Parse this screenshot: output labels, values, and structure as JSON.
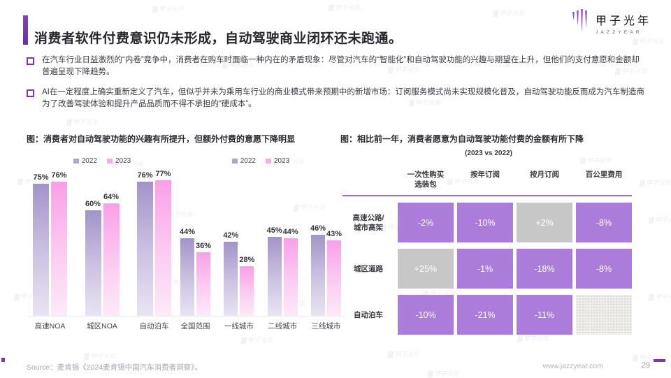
{
  "header": {
    "title": "消费者软件付费意识仍未形成，自动驾驶商业闭环还未跑通。"
  },
  "logo": {
    "name": "甲子光年",
    "sub": "JAZZYEAR"
  },
  "watermark": "甲子光年",
  "bullets": [
    "在汽车行业日益激烈的“内卷”竞争中，消费者在购车时面临一种内在的矛盾现象：尽管对汽车的“智能化”和自动驾驶功能的兴趣与期望在上升，但他们的支付意愿和金额却普遍呈现下降趋势。",
    "AI在一定程度上确实重新定义了汽车，但似乎并未为乘用车行业的商业模式带来预期中的新增市场：订阅服务模式尚未实现规模化普及，自动驾驶功能反而成为汽车制造商为了改善驾驶体验和提升产品品质而不得不承担的“硬成本”。"
  ],
  "figures": {
    "left": {
      "title": "图：消费者对自动驾驶功能的兴趣有所提升，但额外付费的意愿下降明显"
    },
    "right": {
      "title": "图：相比前一年，消费者愿意为自动驾驶功能付费的金额有所下降",
      "subtitle": "(2023 vs 2022)"
    }
  },
  "chart_data": [
    {
      "type": "bar",
      "title": "消费者对自动驾驶功能的兴趣",
      "categories": [
        "高速NOA",
        "城区NOA",
        "自动泊车"
      ],
      "series": [
        {
          "name": "2022",
          "values": [
            75,
            60,
            76
          ]
        },
        {
          "name": "2023",
          "values": [
            76,
            64,
            77
          ]
        }
      ],
      "unit": "%",
      "ylim": [
        0,
        100
      ],
      "legend_position": "top",
      "grid": false
    },
    {
      "type": "bar",
      "title": "额外付费的意愿",
      "categories": [
        "全国范围",
        "一线城市",
        "二线城市",
        "三线城市"
      ],
      "series": [
        {
          "name": "2022",
          "values": [
            44,
            42,
            45,
            46
          ]
        },
        {
          "name": "2023",
          "values": [
            36,
            28,
            44,
            43
          ]
        }
      ],
      "unit": "%",
      "ylim": [
        0,
        100
      ],
      "legend_position": "top",
      "grid": false
    },
    {
      "type": "table",
      "title": "相比前一年，消费者愿意为自动驾驶功能付费的金额有所下降 (2023 vs 2022)",
      "columns": [
        "一次性购买\n选装包",
        "按年订阅",
        "按月订阅",
        "百公里费用"
      ],
      "rows": [
        {
          "label": "高速公路/\n城市高架",
          "cells": [
            {
              "value": "-2%",
              "style": "purple"
            },
            {
              "value": "-10%",
              "style": "purple"
            },
            {
              "value": "+2%",
              "style": "gray"
            },
            {
              "value": "-8%",
              "style": "purple"
            }
          ]
        },
        {
          "label": "城区道路",
          "cells": [
            {
              "value": "+25%",
              "style": "gray"
            },
            {
              "value": "-1%",
              "style": "purple"
            },
            {
              "value": "-18%",
              "style": "purple"
            },
            {
              "value": "-8%",
              "style": "purple"
            }
          ]
        },
        {
          "label": "自动泊车",
          "cells": [
            {
              "value": "-10%",
              "style": "purple"
            },
            {
              "value": "-21%",
              "style": "purple"
            },
            {
              "value": "-11%",
              "style": "purple"
            },
            {
              "value": "",
              "style": "empty"
            }
          ]
        }
      ]
    }
  ],
  "colors": {
    "accent_purple": "#7d35b5",
    "bar_2022": "#a294c9",
    "bar_2023": "#fa9fe9",
    "table_purple": "#ab7cd9",
    "table_gray": "#c7c7c7",
    "table_divider": "#9a6cc8"
  },
  "footer": {
    "source": "Source：麦肯锡《2024麦肯锡中国汽车消费者洞察》。",
    "website": "www.jazzyear.com",
    "page": "29"
  }
}
